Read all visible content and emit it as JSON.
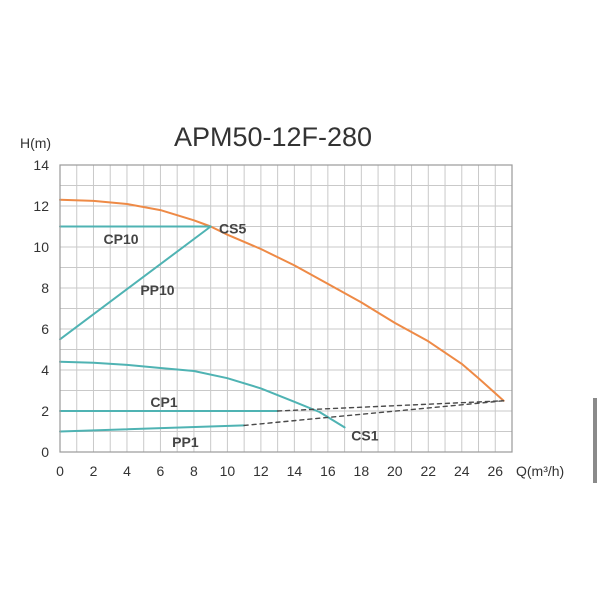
{
  "colors": {
    "orange": "#ee8a46",
    "teal": "#4fb3b3",
    "dashed": "#4a4a4a",
    "grid": "#c9c9c9"
  },
  "chart_data": {
    "type": "line",
    "title": "APM50-12F-280",
    "xlabel": "Q(m³/h)",
    "ylabel": "H(m)",
    "xlim": [
      0,
      27
    ],
    "ylim": [
      0,
      14
    ],
    "x_ticks": [
      "0",
      "2",
      "4",
      "6",
      "8",
      "10",
      "12",
      "14",
      "16",
      "18",
      "20",
      "22",
      "24",
      "26"
    ],
    "y_ticks": [
      "0",
      "2",
      "4",
      "6",
      "8",
      "10",
      "12",
      "14"
    ],
    "grid": true,
    "series": [
      {
        "name": "CS5",
        "style": "solid",
        "color": "#ee8a46",
        "points": [
          [
            0,
            12.3
          ],
          [
            2,
            12.25
          ],
          [
            4,
            12.1
          ],
          [
            6,
            11.8
          ],
          [
            8,
            11.3
          ],
          [
            9,
            11.0
          ],
          [
            10,
            10.6
          ],
          [
            12,
            9.9
          ],
          [
            14,
            9.1
          ],
          [
            16,
            8.2
          ],
          [
            18,
            7.3
          ],
          [
            20,
            6.3
          ],
          [
            22,
            5.4
          ],
          [
            24,
            4.3
          ],
          [
            25,
            3.6
          ],
          [
            26.5,
            2.5
          ]
        ]
      },
      {
        "name": "CP10",
        "style": "solid",
        "color": "#4fb3b3",
        "points": [
          [
            0,
            11.0
          ],
          [
            9,
            11.0
          ]
        ]
      },
      {
        "name": "PP10",
        "style": "solid",
        "color": "#4fb3b3",
        "points": [
          [
            0,
            5.5
          ],
          [
            9,
            11.0
          ]
        ]
      },
      {
        "name": "CS1",
        "style": "solid",
        "color": "#4fb3b3",
        "points": [
          [
            0,
            4.4
          ],
          [
            2,
            4.35
          ],
          [
            4,
            4.25
          ],
          [
            6,
            4.1
          ],
          [
            8,
            3.95
          ],
          [
            10,
            3.6
          ],
          [
            12,
            3.1
          ],
          [
            14,
            2.45
          ],
          [
            15.5,
            1.95
          ],
          [
            17,
            1.2
          ]
        ]
      },
      {
        "name": "CP1",
        "style": "solid",
        "color": "#4fb3b3",
        "points": [
          [
            0,
            2.0
          ],
          [
            13,
            2.0
          ]
        ]
      },
      {
        "name": "PP1",
        "style": "solid",
        "color": "#4fb3b3",
        "points": [
          [
            0,
            1.0
          ],
          [
            11,
            1.3
          ]
        ]
      },
      {
        "name": "",
        "style": "dashed",
        "color": "#4a4a4a",
        "points": [
          [
            13,
            2.0
          ],
          [
            26.5,
            2.5
          ]
        ]
      },
      {
        "name": "",
        "style": "dashed",
        "color": "#4a4a4a",
        "points": [
          [
            11,
            1.3
          ],
          [
            26.5,
            2.5
          ]
        ]
      }
    ],
    "labels": [
      {
        "text": "CS5",
        "x": 9.5,
        "y": 10.9
      },
      {
        "text": "CP10",
        "x": 2.6,
        "y": 10.4
      },
      {
        "text": "PP10",
        "x": 4.8,
        "y": 7.9
      },
      {
        "text": "CP1",
        "x": 5.4,
        "y": 2.45
      },
      {
        "text": "PP1",
        "x": 6.7,
        "y": 0.5
      },
      {
        "text": "CS1",
        "x": 17.4,
        "y": 0.8
      }
    ]
  }
}
